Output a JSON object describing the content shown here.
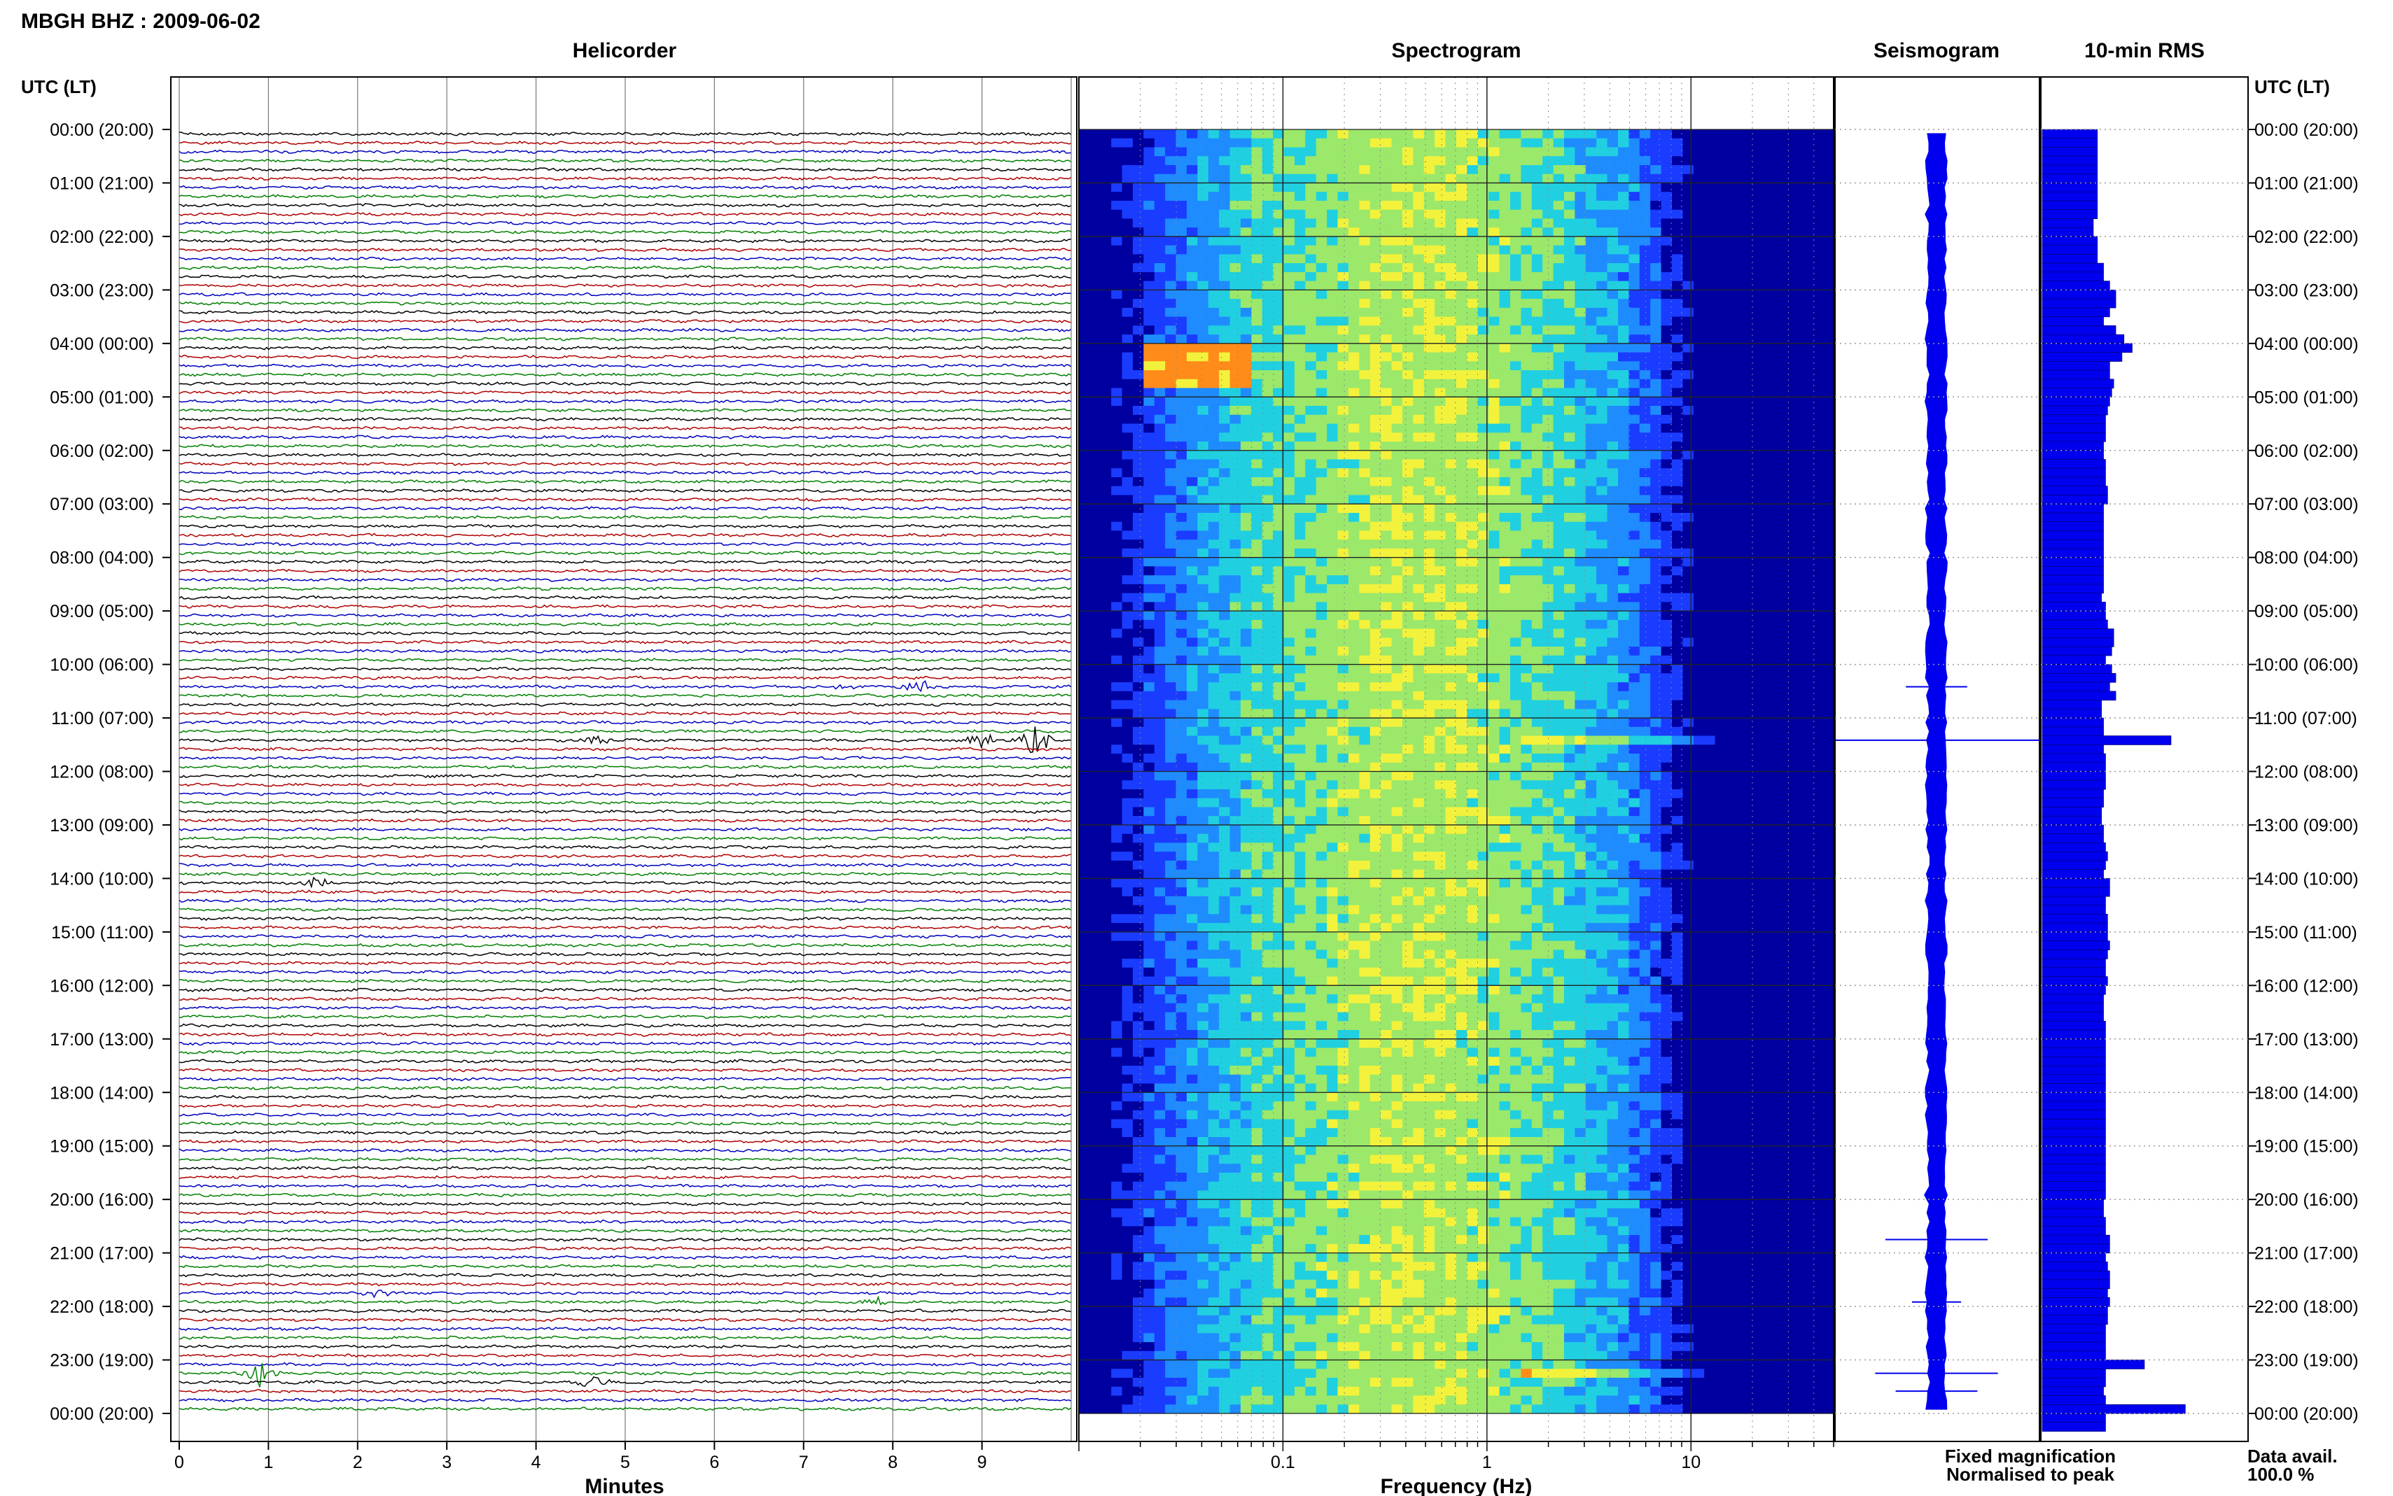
{
  "header": {
    "title": "MBGH BHZ : 2009-06-02"
  },
  "panels": {
    "helicorder": "Helicorder",
    "spectrogram": "Spectrogram",
    "seismogram": "Seismogram",
    "rms": "10-min RMS"
  },
  "axes": {
    "time_label_left": "UTC (LT)",
    "time_label_right": "UTC (LT)",
    "helicorder_xlabel": "Minutes",
    "spectrogram_xlabel": "Frequency (Hz)"
  },
  "legend": {
    "fixed": "Fixed magnification",
    "normalised": "Normalised to peak",
    "fixed_color": "#1a1aff",
    "normalised_color": "#ff1a1a"
  },
  "data_avail": {
    "label": "Data avail.",
    "value": "100.0 %"
  },
  "chart_data": {
    "type": "heatmap",
    "time_ticks": [
      "00:00 (20:00)",
      "01:00 (21:00)",
      "02:00 (22:00)",
      "03:00 (23:00)",
      "04:00 (00:00)",
      "05:00 (01:00)",
      "06:00 (02:00)",
      "07:00 (03:00)",
      "08:00 (04:00)",
      "09:00 (05:00)",
      "10:00 (06:00)",
      "11:00 (07:00)",
      "12:00 (08:00)",
      "13:00 (09:00)",
      "14:00 (10:00)",
      "15:00 (11:00)",
      "16:00 (12:00)",
      "17:00 (13:00)",
      "18:00 (14:00)",
      "19:00 (15:00)",
      "20:00 (16:00)",
      "21:00 (17:00)",
      "22:00 (18:00)",
      "23:00 (19:00)",
      "00:00 (20:00)"
    ],
    "helicorder": {
      "x_ticks": [
        "0",
        "1",
        "2",
        "3",
        "4",
        "5",
        "6",
        "7",
        "8",
        "9"
      ],
      "xlim": [
        0,
        10
      ],
      "trace_colors": [
        "#000000",
        "#b00000",
        "#0000c0",
        "#008000"
      ],
      "traces_per_hour": 6,
      "events": [
        {
          "trace": 62,
          "minute": 8.3,
          "amp": 9
        },
        {
          "trace": 62,
          "minute": 7.4,
          "amp": 3
        },
        {
          "trace": 68,
          "minute": 9.6,
          "amp": 20
        },
        {
          "trace": 68,
          "minute": 9.0,
          "amp": 10
        },
        {
          "trace": 68,
          "minute": 4.7,
          "amp": 5
        },
        {
          "trace": 84,
          "minute": 1.55,
          "amp": 6
        },
        {
          "trace": 139,
          "minute": 0.9,
          "amp": 18
        },
        {
          "trace": 140,
          "minute": 4.65,
          "amp": 8
        },
        {
          "trace": 131,
          "minute": 7.8,
          "amp": 5
        },
        {
          "trace": 130,
          "minute": 2.25,
          "amp": 5
        }
      ]
    },
    "spectrogram": {
      "x_ticks": [
        "0.1",
        "1",
        "10"
      ],
      "xscale": "log",
      "xlim": [
        0.01,
        50
      ],
      "colormap": [
        "#0000a0",
        "#1a3cff",
        "#1e8cff",
        "#20d0e0",
        "#9be86a",
        "#f2f23c",
        "#ff8c1a"
      ]
    },
    "seismogram": {
      "note": "Seismogram envelope per 10-min window",
      "spikes": [
        {
          "trace": 62,
          "amp": 0.15
        },
        {
          "trace": 68,
          "amp": 0.55
        },
        {
          "trace": 124,
          "amp": 0.25
        },
        {
          "trace": 139,
          "amp": 0.3
        },
        {
          "trace": 141,
          "amp": 0.2
        },
        {
          "trace": 131,
          "amp": 0.12
        }
      ]
    },
    "rms": {
      "color": "#0000ee",
      "xlim": [
        0,
        1
      ],
      "values": [
        0.27,
        0.27,
        0.27,
        0.27,
        0.27,
        0.27,
        0.27,
        0.27,
        0.27,
        0.27,
        0.25,
        0.25,
        0.27,
        0.27,
        0.27,
        0.3,
        0.3,
        0.33,
        0.36,
        0.36,
        0.33,
        0.3,
        0.36,
        0.4,
        0.44,
        0.39,
        0.33,
        0.33,
        0.35,
        0.34,
        0.33,
        0.32,
        0.31,
        0.31,
        0.31,
        0.3,
        0.3,
        0.31,
        0.31,
        0.31,
        0.32,
        0.32,
        0.3,
        0.3,
        0.3,
        0.3,
        0.3,
        0.3,
        0.3,
        0.3,
        0.3,
        0.3,
        0.29,
        0.31,
        0.31,
        0.32,
        0.35,
        0.35,
        0.34,
        0.31,
        0.34,
        0.36,
        0.33,
        0.36,
        0.29,
        0.29,
        0.3,
        0.3,
        0.63,
        0.3,
        0.31,
        0.31,
        0.31,
        0.31,
        0.3,
        0.3,
        0.29,
        0.29,
        0.3,
        0.3,
        0.31,
        0.32,
        0.31,
        0.3,
        0.33,
        0.33,
        0.31,
        0.31,
        0.32,
        0.32,
        0.32,
        0.33,
        0.32,
        0.31,
        0.31,
        0.32,
        0.31,
        0.3,
        0.3,
        0.3,
        0.31,
        0.31,
        0.31,
        0.31,
        0.31,
        0.31,
        0.31,
        0.31,
        0.31,
        0.31,
        0.31,
        0.31,
        0.31,
        0.31,
        0.31,
        0.31,
        0.31,
        0.31,
        0.31,
        0.31,
        0.3,
        0.3,
        0.31,
        0.31,
        0.33,
        0.33,
        0.31,
        0.32,
        0.33,
        0.33,
        0.32,
        0.33,
        0.32,
        0.32,
        0.31,
        0.31,
        0.31,
        0.31,
        0.5,
        0.31,
        0.31,
        0.3,
        0.31,
        0.7,
        0.31,
        0.31
      ]
    }
  }
}
